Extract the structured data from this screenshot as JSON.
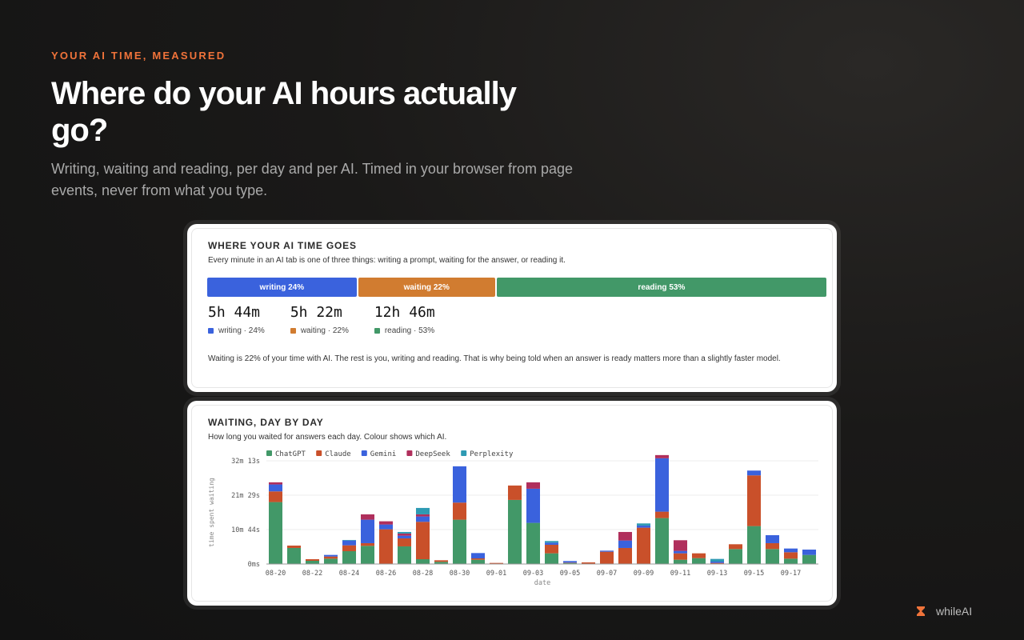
{
  "hero": {
    "eyebrow": "YOUR AI TIME, MEASURED",
    "headline": "Where do your AI hours actually go?",
    "subtitle": "Writing, waiting and reading, per day and per AI. Timed in your browser from page events, never from what you type."
  },
  "breakdown": {
    "title": "WHERE YOUR AI TIME GOES",
    "description": "Every minute in an AI tab is one of three things: writing a prompt, waiting for the answer, or reading it.",
    "segments": [
      {
        "label": "writing 24%",
        "share": 24,
        "color": "#3a62dd"
      },
      {
        "label": "waiting 22%",
        "share": 22,
        "color": "#d17c30"
      },
      {
        "label": "reading 53%",
        "share": 53,
        "color": "#429868"
      }
    ],
    "stats": [
      {
        "value": "5h 44m",
        "legend": "writing · 24%",
        "color": "#3a62dd"
      },
      {
        "value": "5h 22m",
        "legend": "waiting · 22%",
        "color": "#d17c30"
      },
      {
        "value": "12h 46m",
        "legend": "reading · 53%",
        "color": "#429868"
      }
    ],
    "note": "Waiting is 22% of your time with AI. The rest is you, writing and reading. That is why being told when an answer is ready matters more than a slightly faster model."
  },
  "daily": {
    "title": "WAITING, DAY BY DAY",
    "description": "How long you waited for answers each day. Colour shows which AI."
  },
  "chart_data": {
    "type": "bar",
    "stacked": true,
    "xlabel": "date",
    "ylabel": "time spent waiting",
    "ylim": [
      0,
      1933
    ],
    "y_ticks": [
      {
        "value": 0,
        "label": "0ms"
      },
      {
        "value": 644,
        "label": "10m 44s"
      },
      {
        "value": 1289,
        "label": "21m 29s"
      },
      {
        "value": 1933,
        "label": "32m 13s"
      }
    ],
    "legend_position": "top-left",
    "grid": true,
    "categories": [
      "08-20",
      "08-21",
      "08-22",
      "08-23",
      "08-24",
      "08-25",
      "08-26",
      "08-27",
      "08-28",
      "08-29",
      "08-30",
      "08-31",
      "09-01",
      "09-02",
      "09-03",
      "09-04",
      "09-05",
      "09-06",
      "09-07",
      "09-08",
      "09-09",
      "09-10",
      "09-11",
      "09-12",
      "09-13",
      "09-14",
      "09-15",
      "09-16",
      "09-17",
      "09-18"
    ],
    "tick_labels": [
      "08-20",
      "08-22",
      "08-24",
      "08-26",
      "08-28",
      "08-30",
      "09-01",
      "09-03",
      "09-05",
      "09-07",
      "09-09",
      "09-11",
      "09-13",
      "09-15",
      "09-17"
    ],
    "series": [
      {
        "name": "ChatGPT",
        "color": "#429868",
        "values": [
          1160,
          300,
          60,
          100,
          240,
          340,
          0,
          330,
          90,
          40,
          830,
          80,
          0,
          1200,
          770,
          200,
          20,
          0,
          0,
          0,
          0,
          860,
          80,
          110,
          0,
          280,
          710,
          280,
          100,
          170
        ]
      },
      {
        "name": "Claude",
        "color": "#c9502a",
        "values": [
          200,
          45,
          30,
          40,
          110,
          50,
          650,
          150,
          700,
          30,
          320,
          25,
          20,
          270,
          0,
          160,
          5,
          30,
          230,
          300,
          680,
          120,
          120,
          90,
          20,
          90,
          950,
          110,
          120,
          0
        ]
      },
      {
        "name": "Gemini",
        "color": "#3a62dd",
        "values": [
          130,
          0,
          0,
          30,
          90,
          440,
          90,
          50,
          100,
          0,
          680,
          100,
          0,
          0,
          640,
          40,
          30,
          0,
          20,
          140,
          40,
          1000,
          45,
          0,
          25,
          0,
          90,
          150,
          70,
          100
        ]
      },
      {
        "name": "DeepSeek",
        "color": "#b02f5c",
        "values": [
          40,
          0,
          0,
          0,
          0,
          100,
          60,
          40,
          40,
          0,
          0,
          0,
          0,
          0,
          120,
          0,
          0,
          0,
          0,
          160,
          0,
          60,
          200,
          0,
          0,
          0,
          0,
          0,
          0,
          0
        ]
      },
      {
        "name": "Perplexity",
        "color": "#2e9ab3",
        "values": [
          0,
          0,
          0,
          0,
          10,
          0,
          0,
          30,
          120,
          0,
          0,
          0,
          0,
          0,
          0,
          30,
          0,
          0,
          0,
          0,
          40,
          0,
          0,
          0,
          50,
          0,
          0,
          0,
          0,
          0
        ]
      }
    ]
  },
  "footer": {
    "brand": "whileAI",
    "brand_icon": "hourglass-icon",
    "accent": "#f0733a"
  }
}
